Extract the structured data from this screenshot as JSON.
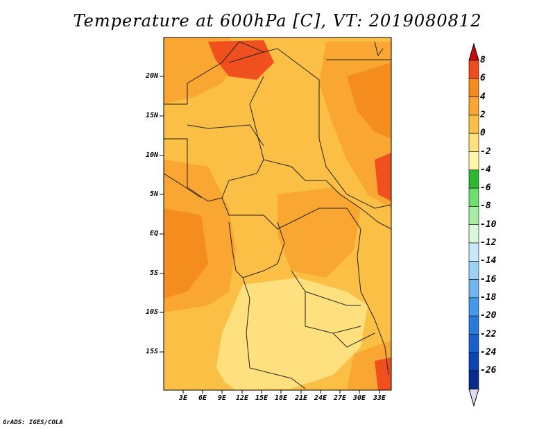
{
  "title": "Temperature at 600hPa [C], VT: 2019080812",
  "credit": "GrADS: IGES/COLA",
  "map": {
    "lat_labels": [
      "20N",
      "15N",
      "10N",
      "5N",
      "EQ",
      "5S",
      "10S",
      "15S"
    ],
    "lon_labels": [
      "3E",
      "6E",
      "9E",
      "12E",
      "15E",
      "18E",
      "21E",
      "24E",
      "27E",
      "30E",
      "33E"
    ],
    "lat_range": [
      -20,
      24.5
    ],
    "lon_range": [
      0,
      34.5
    ],
    "field_colors": {
      "plus6": "#f0501e",
      "plus4": "#f48c1e",
      "plus2": "#f9a632",
      "zero": "#fbbf46",
      "minus2": "#ffe07e",
      "border": "#222222"
    }
  },
  "colorbar": {
    "labels": [
      "8",
      "6",
      "4",
      "2",
      "0",
      "-2",
      "-4",
      "-6",
      "-8",
      "-10",
      "-12",
      "-14",
      "-16",
      "-18",
      "-20",
      "-22",
      "-24",
      "-26"
    ],
    "colors": [
      "#e4160e",
      "#f04a1e",
      "#f58a1d",
      "#f9a632",
      "#fbbf46",
      "#ffe07e",
      "#fff5aa",
      "#2eb82e",
      "#6fde6f",
      "#a6eea6",
      "#d9f8d9",
      "#c7e8f8",
      "#9cd0f4",
      "#6fb6ef",
      "#4698e8",
      "#2a7adc",
      "#1960cc",
      "#0c44b4",
      "#0a2a8c"
    ],
    "top_arrow_color": "#c80c0c",
    "bottom_arrow_color": "#dcdcf4"
  }
}
